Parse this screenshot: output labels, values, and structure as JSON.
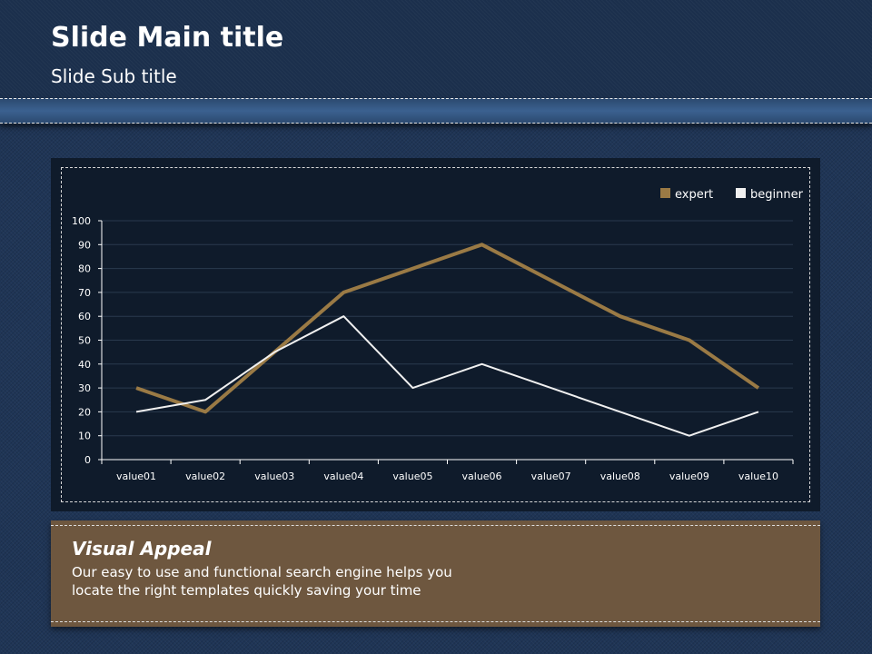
{
  "slide": {
    "title": "Slide Main title",
    "subtitle": "Slide Sub title"
  },
  "info": {
    "heading": "Visual Appeal",
    "text": "Our easy to use and functional search engine helps you locate the right templates quickly saving your time"
  },
  "chart_data": {
    "type": "line",
    "categories": [
      "value01",
      "value02",
      "value03",
      "value04",
      "value05",
      "value06",
      "value07",
      "value08",
      "value09",
      "value10"
    ],
    "series": [
      {
        "name": "expert",
        "color": "#9a7a45",
        "values": [
          30,
          20,
          45,
          70,
          80,
          90,
          75,
          60,
          50,
          30
        ]
      },
      {
        "name": "beginner",
        "color": "#f0f0f0",
        "values": [
          20,
          25,
          45,
          60,
          30,
          40,
          30,
          20,
          10,
          20
        ]
      }
    ],
    "ylim": [
      0,
      100
    ],
    "yticks": [
      0,
      10,
      20,
      30,
      40,
      50,
      60,
      70,
      80,
      90,
      100
    ],
    "legend": "top-right",
    "grid": true
  }
}
